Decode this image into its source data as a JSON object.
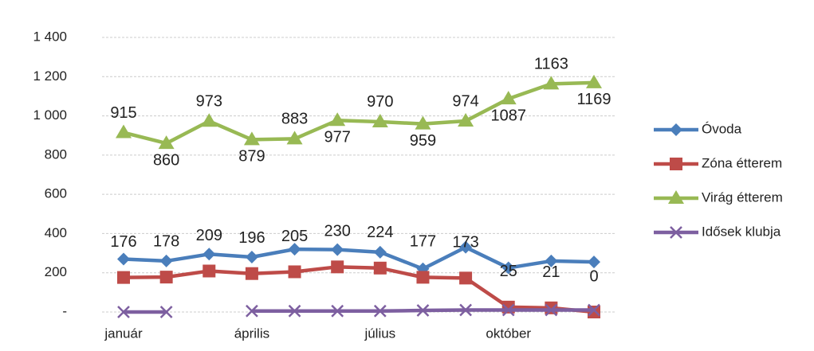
{
  "chart_data": {
    "type": "line",
    "categories": [
      "január",
      null,
      null,
      "április",
      null,
      null,
      "július",
      null,
      null,
      "október",
      null,
      null
    ],
    "ylim": [
      0,
      1400
    ],
    "yticks": [
      {
        "value": 0,
        "label": "-"
      },
      200,
      400,
      600,
      800,
      {
        "value": 1000,
        "label": "1 000"
      },
      {
        "value": 1200,
        "label": "1 200"
      },
      {
        "value": 1400,
        "label": "1 400"
      }
    ],
    "grid": true,
    "legend": "right",
    "series": [
      {
        "name": "Óvoda",
        "color": "#4a7ebb",
        "marker": "diamond",
        "show_labels": false,
        "values": [
          270,
          260,
          295,
          280,
          320,
          318,
          305,
          220,
          330,
          225,
          260,
          255
        ]
      },
      {
        "name": "Zóna étterem",
        "color": "#be4b48",
        "marker": "square",
        "show_labels": true,
        "values": [
          176,
          178,
          209,
          196,
          205,
          230,
          224,
          177,
          173,
          25,
          21,
          0
        ]
      },
      {
        "name": "Virág étterem",
        "color": "#98b954",
        "marker": "triangle",
        "show_labels": true,
        "values": [
          915,
          860,
          973,
          879,
          883,
          977,
          970,
          959,
          974,
          1087,
          1163,
          1169
        ]
      },
      {
        "name": "Idősek klubja",
        "color": "#7d5fa0",
        "marker": "x",
        "show_labels": false,
        "values": [
          0,
          0,
          null,
          5,
          5,
          5,
          5,
          8,
          10,
          10,
          10,
          10
        ]
      }
    ]
  }
}
